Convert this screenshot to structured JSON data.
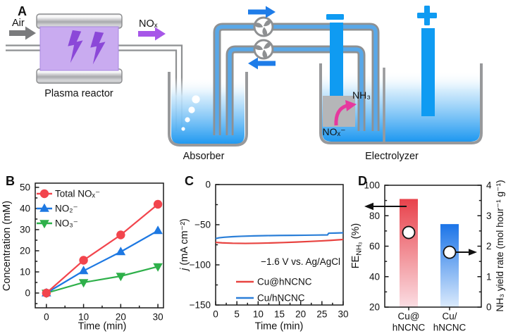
{
  "panelA": {
    "label": "A",
    "air": "Air",
    "nox": "NOₓ",
    "plasma_reactor": "Plasma reactor",
    "absorber": "Absorber",
    "electrolyzer": "Electrolyzer",
    "nh3": "NH₃",
    "nox_minus": "NOₓ⁻",
    "cathode_sign": "−",
    "anode_sign": "+",
    "palette": {
      "water_blue": "#1e98f0",
      "electrode_blue": "#0f9bf2",
      "reactor_purple": "#c9abf0",
      "bolt_purple": "#8b48d8",
      "nox_arrow_purple": "#a757e8",
      "nh3_arrow_pink": "#e6389e",
      "pipe_gray": "#8e9092",
      "flow_arrow_blue": "#1e7ce8"
    }
  },
  "panelB": {
    "label": "B",
    "xlabel": "Time (min)",
    "ylabel": "Concentration (mM)"
  },
  "panelC": {
    "label": "C",
    "xlabel": "Time (min)",
    "ylabel_italic": "j",
    "ylabel_rest": " (mA cm⁻²)",
    "annotation": "−1.6 V vs. Ag/AgCl"
  },
  "panelD": {
    "label": "D",
    "ylabel_left_main": "FE",
    "ylabel_left_sub": "NH₃",
    "ylabel_left_rest": " (%)",
    "ylabel_right": "NH₃ yield rate (mol hour⁻¹ g⁻¹)"
  },
  "chart_data": [
    {
      "id": "B",
      "type": "line",
      "xlabel": "Time (min)",
      "ylabel": "Concentration (mM)",
      "x": [
        0,
        10,
        20,
        30
      ],
      "series": [
        {
          "name": "Total NOₓ⁻",
          "color": "#f2454d",
          "marker": "circle",
          "values": [
            0,
            15.5,
            27.5,
            42
          ]
        },
        {
          "name": "NO₂⁻",
          "color": "#1d78e2",
          "marker": "triangle-up",
          "values": [
            0,
            10.5,
            19.5,
            29.5
          ]
        },
        {
          "name": "NO₃⁻",
          "color": "#2eb04a",
          "marker": "triangle-down",
          "values": [
            0,
            5,
            8,
            12.5
          ]
        }
      ],
      "xticks": [
        0,
        10,
        20,
        30
      ],
      "yticks": [
        0,
        10,
        20,
        30,
        40,
        50
      ],
      "xlim": [
        -3,
        31.5
      ],
      "ylim": [
        -7,
        52
      ],
      "legend_position": "top-left",
      "grid": false
    },
    {
      "id": "C",
      "type": "line",
      "xlabel": "Time (min)",
      "ylabel": "j (mA cm⁻²)",
      "annotation": "−1.6 V vs. Ag/AgCl",
      "series": [
        {
          "name": "Cu@hNCNC",
          "color": "#e84340",
          "points": [
            [
              0,
              -72
            ],
            [
              1.5,
              -72.6
            ],
            [
              4,
              -73.1
            ],
            [
              7,
              -73.3
            ],
            [
              10,
              -73.1
            ],
            [
              13,
              -72.7
            ],
            [
              16,
              -72.2
            ],
            [
              19,
              -71.6
            ],
            [
              22,
              -70.9
            ],
            [
              25,
              -70.1
            ],
            [
              27,
              -69.5
            ],
            [
              28.5,
              -69
            ],
            [
              30,
              -68.4
            ]
          ]
        },
        {
          "name": "Cu/hNCNC",
          "color": "#2b7fd8",
          "points": [
            [
              0,
              -67.3
            ],
            [
              0.8,
              -66.3
            ],
            [
              2,
              -65.6
            ],
            [
              4,
              -64.9
            ],
            [
              6,
              -64.4
            ],
            [
              9,
              -63.9
            ],
            [
              12,
              -63.6
            ],
            [
              15,
              -63.4
            ],
            [
              18,
              -63.3
            ],
            [
              21,
              -63.1
            ],
            [
              24,
              -62.9
            ],
            [
              26.3,
              -62.7
            ],
            [
              26.6,
              -60.6
            ],
            [
              28,
              -60.4
            ],
            [
              30,
              -60.1
            ]
          ]
        }
      ],
      "xticks": [
        0,
        5,
        10,
        15,
        20,
        25,
        30
      ],
      "yticks": [
        0,
        -50,
        -100,
        -150
      ],
      "xlim": [
        0,
        30
      ],
      "ylim": [
        -150,
        0
      ],
      "legend_position": "bottom-right",
      "grid": false
    },
    {
      "id": "D",
      "type": "bar",
      "categories": [
        [
          "Cu@",
          "hNCNC"
        ],
        [
          "Cu/",
          "hNCNC"
        ]
      ],
      "ylabel_left": "FE NH₃ (%)",
      "ylabel_right": "NH₃ yield rate (mol hour⁻¹ g⁻¹)",
      "fe_values": [
        91,
        74.5
      ],
      "yield_values": [
        2.45,
        1.8
      ],
      "bar_color_top": [
        "#e8424b",
        "#1b74e8"
      ],
      "bar_color_bottom": [
        "#fbdee3",
        "#dbeafc"
      ],
      "marker": "open-circle",
      "yticks_left": [
        20,
        40,
        60,
        80,
        100
      ],
      "yticks_right": [
        0,
        1,
        2,
        3,
        4
      ],
      "ylim_left": [
        20,
        100
      ],
      "ylim_right": [
        0,
        4
      ],
      "grid": false
    }
  ]
}
